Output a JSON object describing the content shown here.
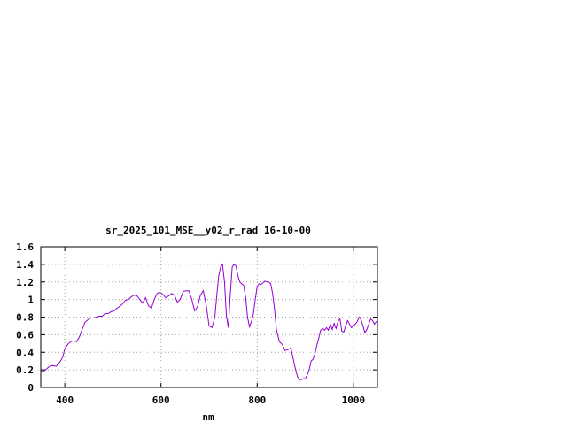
{
  "chart_data": {
    "type": "line",
    "title": "sr_2025_101_MSE__y02_r_rad 16-10-00",
    "xlabel": "nm",
    "ylabel": "",
    "xlim": [
      350,
      1050
    ],
    "ylim": [
      0,
      1.6
    ],
    "x_ticks": [
      400,
      600,
      800,
      1000
    ],
    "x_tick_labels": [
      "400",
      "600",
      "800",
      "1000"
    ],
    "y_ticks": [
      0,
      0.2,
      0.4,
      0.6,
      0.8,
      1.0,
      1.2,
      1.4,
      1.6
    ],
    "y_tick_labels": [
      "0",
      "0.2",
      "0.4",
      "0.6",
      "0.8",
      "1",
      "1.2",
      "1.4",
      "1.6"
    ],
    "grid": true,
    "colors": {
      "series": "#9400d3",
      "grid": "#a0a0a0",
      "axis": "#000000"
    },
    "series": [
      {
        "x": [
          350,
          358,
          366,
          374,
          382,
          390,
          396,
          400,
          406,
          412,
          418,
          424,
          430,
          436,
          442,
          448,
          454,
          460,
          466,
          472,
          478,
          484,
          490,
          496,
          502,
          508,
          514,
          520,
          526,
          532,
          538,
          544,
          550,
          556,
          562,
          568,
          574,
          580,
          586,
          592,
          598,
          604,
          610,
          616,
          622,
          628,
          634,
          640,
          646,
          652,
          658,
          664,
          670,
          676,
          682,
          688,
          694,
          700,
          706,
          712,
          716,
          720,
          724,
          728,
          732,
          736,
          740,
          744,
          748,
          752,
          756,
          760,
          764,
          768,
          772,
          776,
          780,
          784,
          788,
          792,
          796,
          800,
          804,
          808,
          812,
          816,
          820,
          824,
          828,
          832,
          836,
          840,
          846,
          852,
          858,
          864,
          870,
          876,
          880,
          884,
          888,
          892,
          896,
          900,
          904,
          908,
          912,
          916,
          920,
          924,
          928,
          932,
          936,
          940,
          944,
          948,
          952,
          956,
          960,
          964,
          968,
          972,
          976,
          980,
          984,
          988,
          992,
          996,
          1000,
          1004,
          1008,
          1012,
          1016,
          1020,
          1024,
          1028,
          1032,
          1036,
          1040,
          1044,
          1048,
          1050
        ],
        "y": [
          0.18,
          0.19,
          0.23,
          0.25,
          0.24,
          0.29,
          0.35,
          0.44,
          0.49,
          0.52,
          0.53,
          0.52,
          0.57,
          0.66,
          0.74,
          0.77,
          0.79,
          0.79,
          0.8,
          0.81,
          0.81,
          0.84,
          0.84,
          0.86,
          0.87,
          0.9,
          0.92,
          0.95,
          0.99,
          1.0,
          1.03,
          1.05,
          1.04,
          1.0,
          0.96,
          1.02,
          0.93,
          0.9,
          1.0,
          1.07,
          1.08,
          1.06,
          1.02,
          1.04,
          1.07,
          1.05,
          0.97,
          1.0,
          1.09,
          1.1,
          1.1,
          1.0,
          0.87,
          0.92,
          1.05,
          1.1,
          0.94,
          0.7,
          0.68,
          0.8,
          1.05,
          1.27,
          1.37,
          1.4,
          1.2,
          0.82,
          0.68,
          1.05,
          1.37,
          1.4,
          1.38,
          1.27,
          1.2,
          1.18,
          1.16,
          1.02,
          0.8,
          0.69,
          0.75,
          0.83,
          1.0,
          1.15,
          1.18,
          1.17,
          1.19,
          1.21,
          1.2,
          1.2,
          1.18,
          1.07,
          0.9,
          0.66,
          0.52,
          0.49,
          0.42,
          0.43,
          0.45,
          0.3,
          0.2,
          0.12,
          0.09,
          0.09,
          0.1,
          0.1,
          0.14,
          0.2,
          0.3,
          0.32,
          0.38,
          0.48,
          0.56,
          0.65,
          0.67,
          0.65,
          0.68,
          0.65,
          0.72,
          0.66,
          0.73,
          0.67,
          0.75,
          0.78,
          0.64,
          0.63,
          0.7,
          0.76,
          0.72,
          0.68,
          0.7,
          0.72,
          0.75,
          0.8,
          0.77,
          0.7,
          0.62,
          0.66,
          0.72,
          0.78,
          0.76,
          0.72,
          0.75,
          0.74
        ]
      }
    ]
  }
}
